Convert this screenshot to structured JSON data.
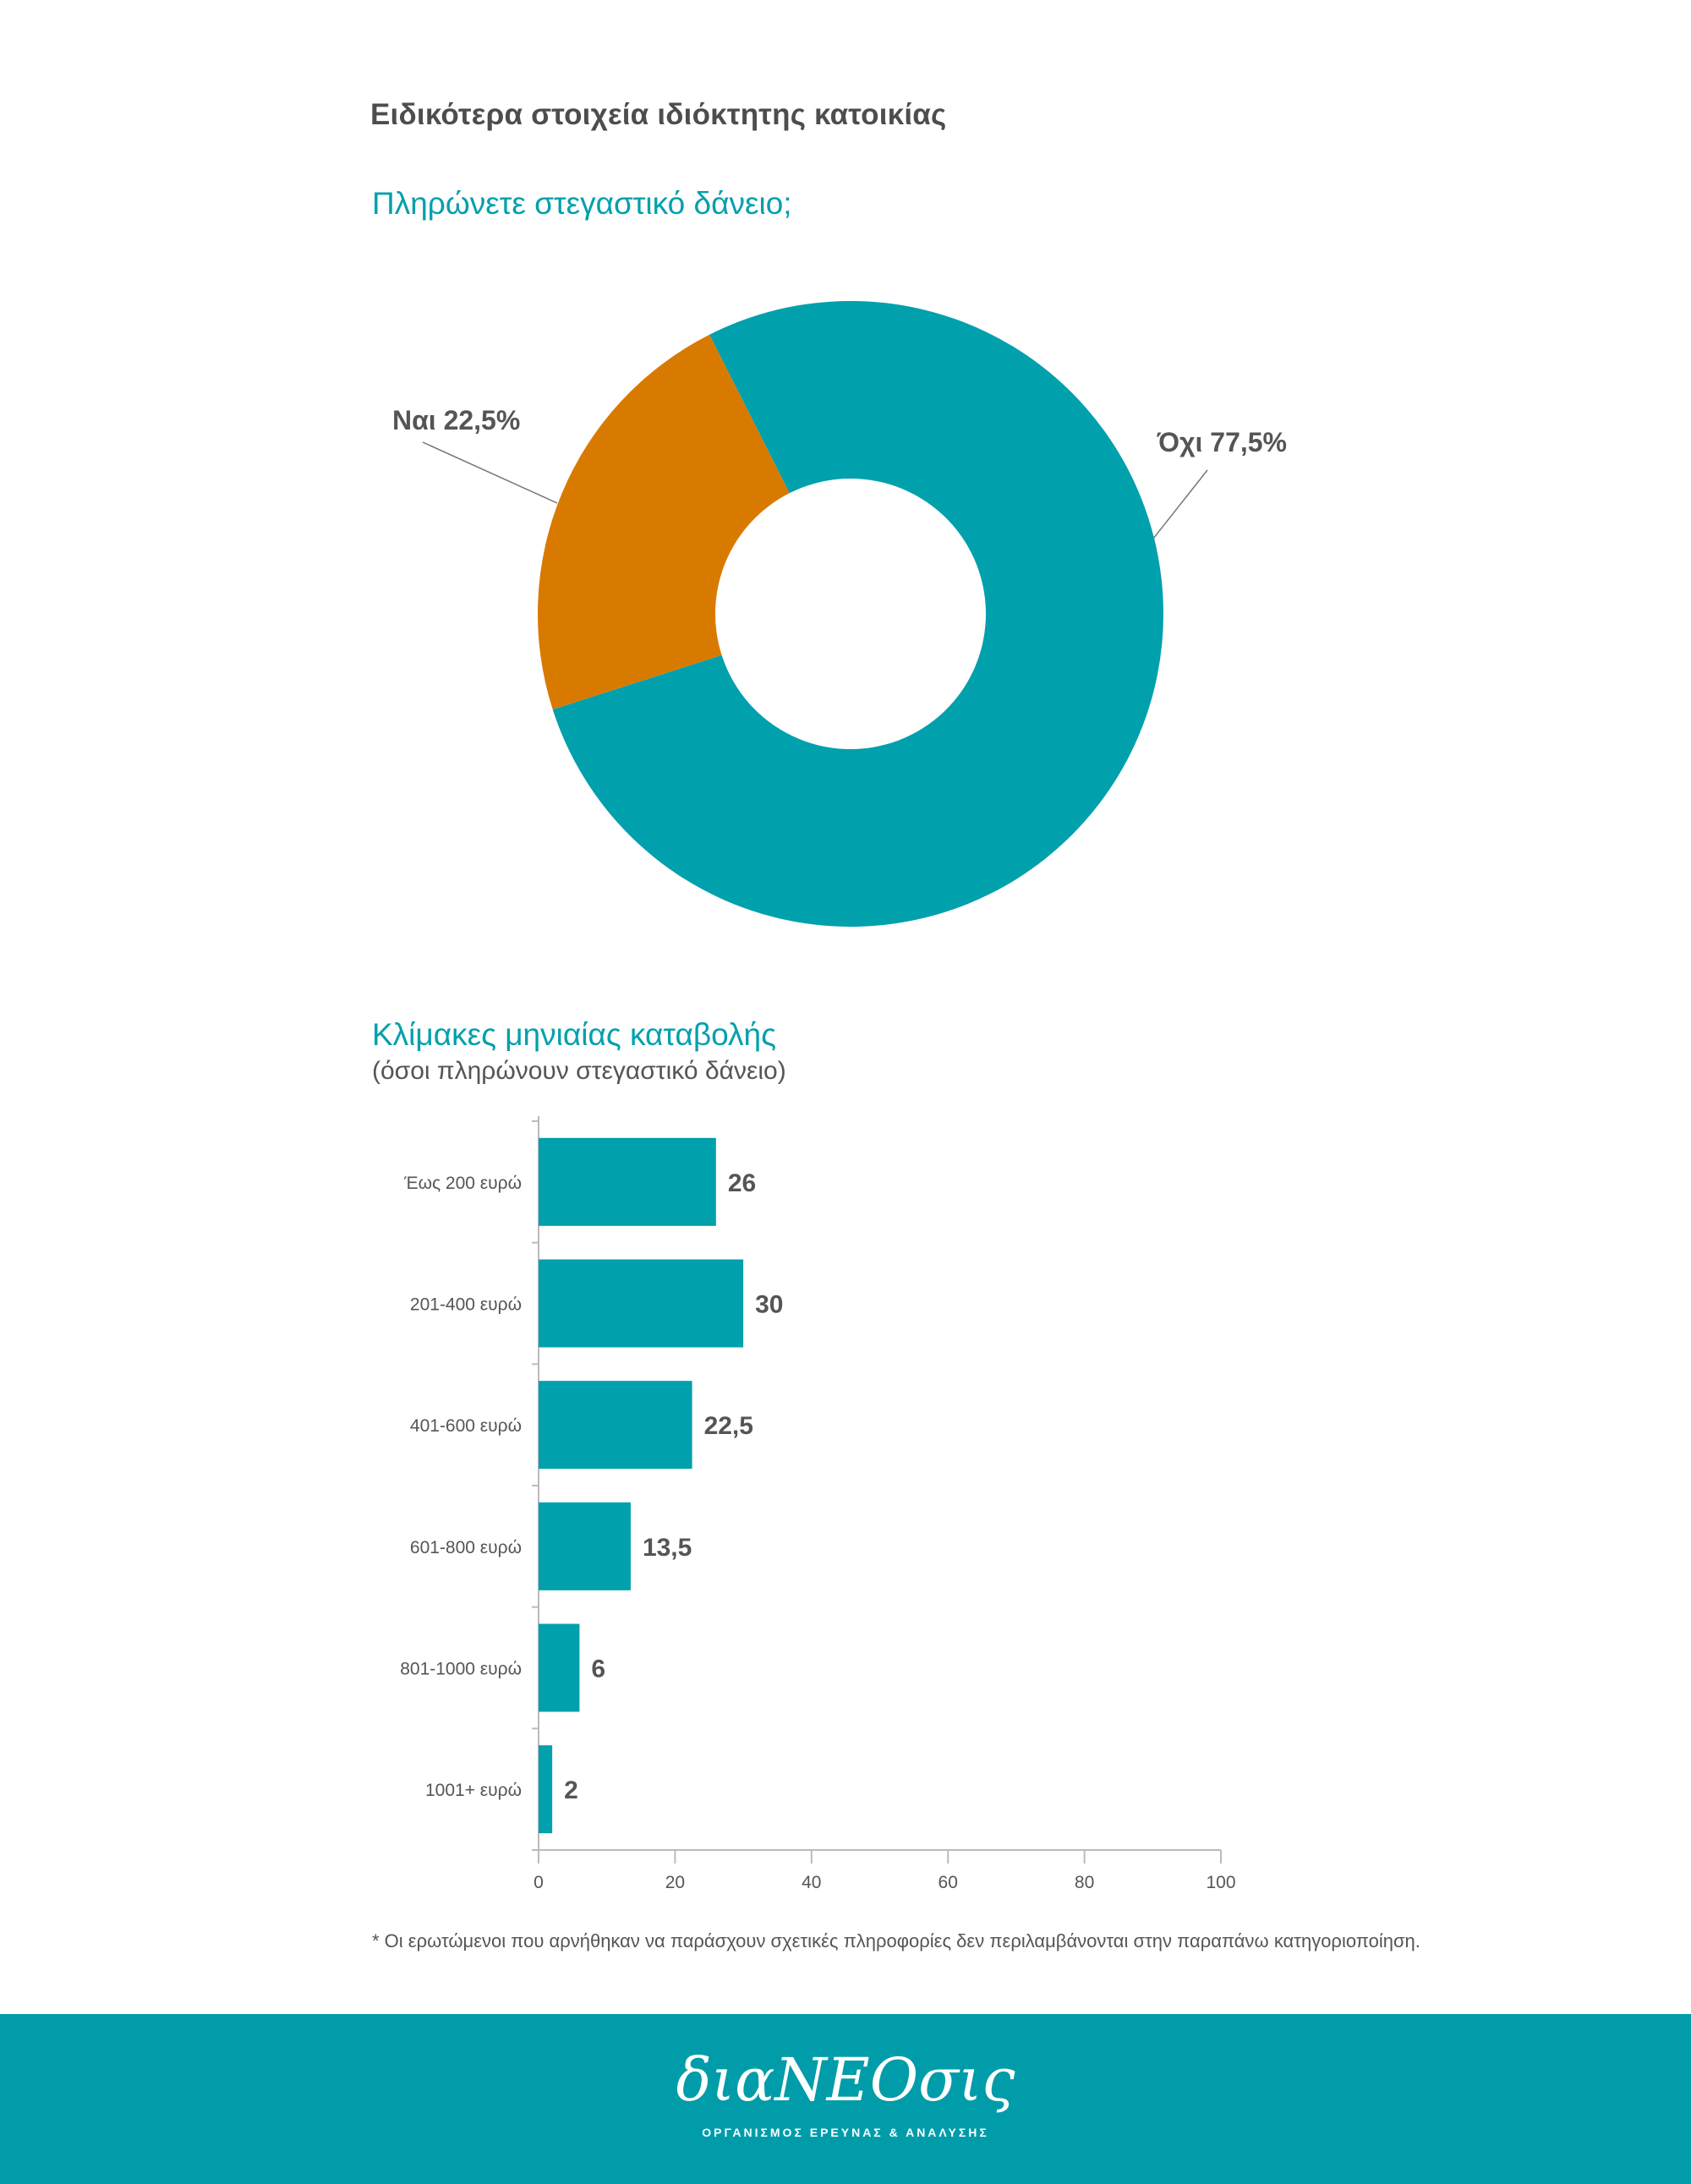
{
  "page": {
    "title": "Ειδικότερα στοιχεία ιδιόκτητης κατοικίας",
    "footnote": "* Οι ερωτώμενοι που αρνήθηκαν να παράσχουν σχετικές πληροφορίες δεν περιλαμβάνονται στην παραπάνω κατηγοριοποίηση."
  },
  "footer": {
    "logo": "διαΝΕΟσις",
    "tagline": "ΟΡΓΑΝΙΣΜΟΣ ΕΡΕΥΝΑΣ & ΑΝΑΛΥΣΗΣ",
    "background": "#009ca9"
  },
  "chart_data": [
    {
      "type": "pie",
      "variant": "donut",
      "title": "Πληρώνετε στεγαστικό δάνειο;",
      "slices": [
        {
          "label": "Ναι",
          "value": 22.5,
          "display": "Ναι 22,5%",
          "color": "#d97a00"
        },
        {
          "label": "Όχι",
          "value": 77.5,
          "display": "Όχι 77,5%",
          "color": "#00a0ad"
        }
      ]
    },
    {
      "type": "bar",
      "orientation": "horizontal",
      "title": "Κλίμακες μηνιαίας καταβολής",
      "subtitle": "(όσοι πληρώνουν στεγαστικό δάνειο)",
      "categories": [
        "Έως 200 ευρώ",
        "201-400 ευρώ",
        "401-600 ευρώ",
        "601-800 ευρώ",
        "801-1000 ευρώ",
        "1001+ ευρώ"
      ],
      "values": [
        26,
        30,
        22.5,
        13.5,
        6,
        2
      ],
      "value_labels": [
        "26",
        "30",
        "22,5",
        "13,5",
        "6",
        "2"
      ],
      "xlim": [
        0,
        100
      ],
      "xticks": [
        0,
        20,
        40,
        60,
        80,
        100
      ],
      "grid": false,
      "color": "#00a0ad"
    }
  ]
}
